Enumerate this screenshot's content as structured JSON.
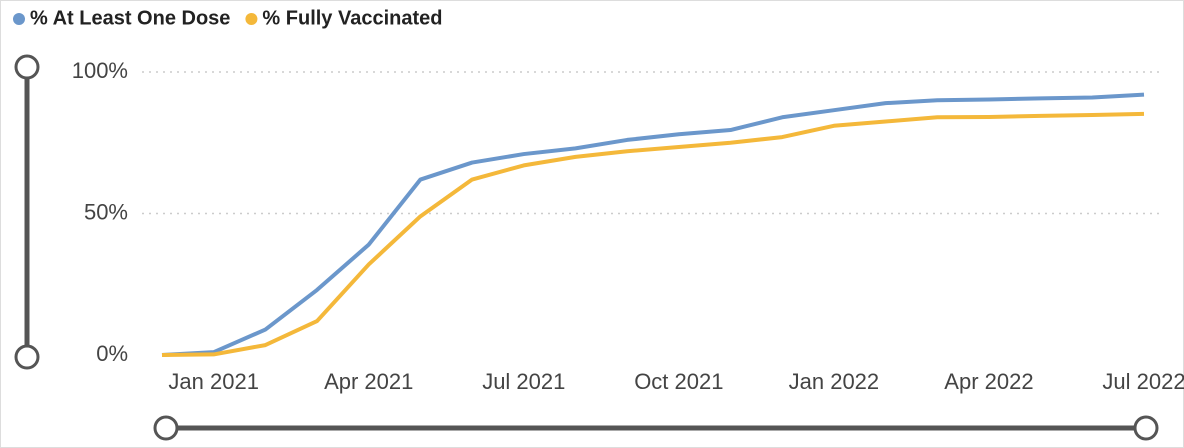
{
  "chart_data": {
    "type": "line",
    "x": [
      "2020-12",
      "2021-01",
      "2021-02",
      "2021-03",
      "2021-04",
      "2021-05",
      "2021-06",
      "2021-07",
      "2021-08",
      "2021-09",
      "2021-10",
      "2021-11",
      "2021-12",
      "2022-01",
      "2022-02",
      "2022-03",
      "2022-04",
      "2022-05",
      "2022-06",
      "2022-07"
    ],
    "series": [
      {
        "name": "% At Least One Dose",
        "color": "#6b97cb",
        "values": [
          0,
          1,
          9,
          23,
          39,
          62,
          68,
          71,
          73,
          76,
          78,
          79.5,
          84,
          86.5,
          89,
          90,
          90.3,
          90.7,
          91,
          92
        ]
      },
      {
        "name": "% Fully Vaccinated",
        "color": "#f4b83a",
        "values": [
          0,
          0.2,
          3.5,
          12,
          32,
          49,
          62,
          67,
          70,
          72,
          73.5,
          75,
          77,
          81,
          82.5,
          84,
          84.1,
          84.5,
          84.8,
          85.2
        ]
      }
    ],
    "xlim": [
      "2020-12",
      "2022-07"
    ],
    "xticks": [
      {
        "value": "2021-01",
        "label": "Jan 2021"
      },
      {
        "value": "2021-04",
        "label": "Apr 2021"
      },
      {
        "value": "2021-07",
        "label": "Jul 2021"
      },
      {
        "value": "2021-10",
        "label": "Oct 2021"
      },
      {
        "value": "2022-01",
        "label": "Jan 2022"
      },
      {
        "value": "2022-04",
        "label": "Apr 2022"
      },
      {
        "value": "2022-07",
        "label": "Jul 2022"
      }
    ],
    "ylim": [
      0,
      100
    ],
    "yticks": [
      {
        "value": 0,
        "label": "0%"
      },
      {
        "value": 50,
        "label": "50%"
      },
      {
        "value": 100,
        "label": "100%"
      }
    ],
    "grid": true,
    "legend": "top-left"
  }
}
